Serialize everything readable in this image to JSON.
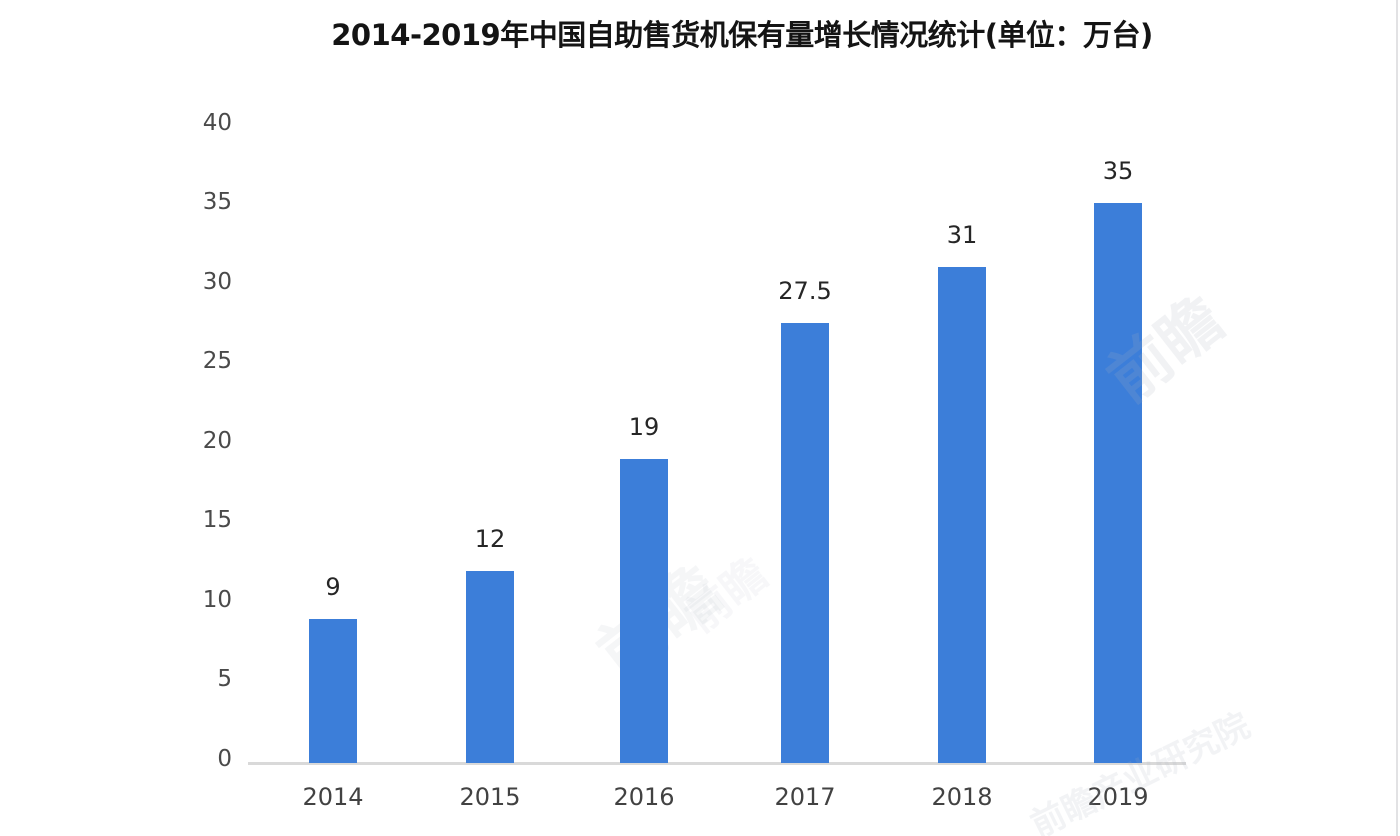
{
  "title": "2014-2019年中国自助售货机保有量增长情况统计(单位：万台)",
  "chart_data": {
    "type": "bar",
    "title": "2014-2019年中国自助售货机保有量增长情况统计(单位：万台)",
    "categories": [
      "2014",
      "2015",
      "2016",
      "2017",
      "2018",
      "2019"
    ],
    "values": [
      9,
      12,
      19,
      27.5,
      31,
      35
    ],
    "value_labels": [
      "9",
      "12",
      "19",
      "27.5",
      "31",
      "35"
    ],
    "xlabel": "",
    "ylabel": "",
    "ylim": [
      0,
      40
    ],
    "yticks": [
      0,
      5,
      10,
      15,
      20,
      25,
      30,
      35,
      40
    ],
    "grid": false,
    "legend_position": "none",
    "bar_color": "#3c7ed9",
    "axis_line_color": "#d9d9d9",
    "unit": "万台"
  },
  "watermarks": [
    {
      "text": "前瞻"
    },
    {
      "text": "前瞻"
    },
    {
      "text": "前瞻产业研究院"
    },
    {
      "text": "前瞻"
    }
  ]
}
